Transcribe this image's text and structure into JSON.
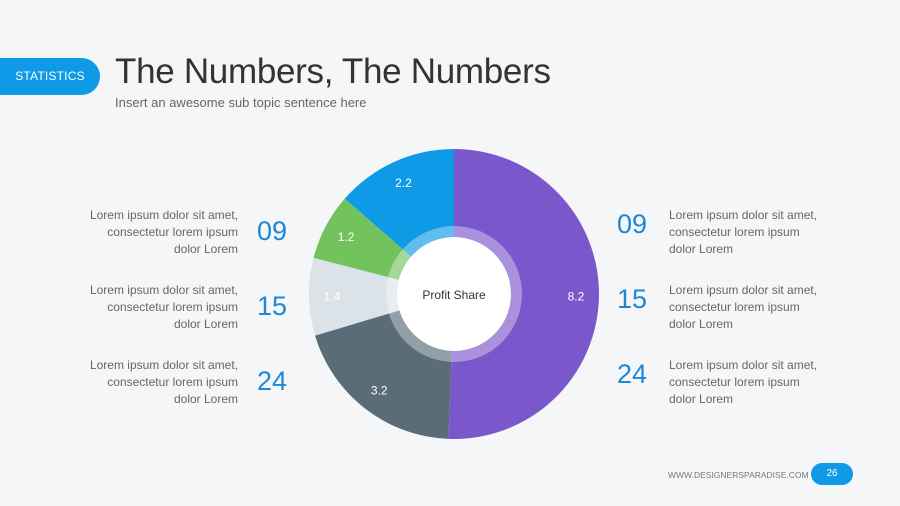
{
  "header": {
    "badge_label": "STATISTICS",
    "title": "The Numbers, The Numbers",
    "subtitle": "Insert an awesome sub topic sentence here"
  },
  "left_items": [
    {
      "number": "09",
      "text": [
        "Lorem ipsum dolor sit amet,",
        "consectetur lorem ipsum",
        "dolor  Lorem"
      ]
    },
    {
      "number": "15",
      "text": [
        "Lorem ipsum dolor sit amet,",
        "consectetur lorem ipsum",
        "dolor  Lorem"
      ]
    },
    {
      "number": "24",
      "text": [
        "Lorem ipsum dolor sit amet,",
        "consectetur lorem ipsum",
        "dolor  Lorem"
      ]
    }
  ],
  "right_items": [
    {
      "number": "09",
      "text": [
        "Lorem ipsum dolor sit amet,",
        "consectetur lorem ipsum",
        "dolor  Lorem"
      ]
    },
    {
      "number": "15",
      "text": [
        "Lorem ipsum dolor sit amet,",
        "consectetur lorem ipsum",
        "dolor  Lorem"
      ]
    },
    {
      "number": "24",
      "text": [
        "Lorem ipsum dolor sit amet,",
        "consectetur lorem ipsum",
        "dolor  Lorem"
      ]
    }
  ],
  "footer": {
    "url": "WWW.DESIGNERSPARADISE.COM",
    "page_number": "26"
  },
  "colors": {
    "accent": "#0e9ae6",
    "number": "#1e88d6"
  },
  "chart_data": {
    "type": "pie",
    "subtype": "donut",
    "title": "Profit Share",
    "categories": [
      "Purple",
      "Slate",
      "Light Gray",
      "Green",
      "Blue"
    ],
    "values": [
      8.2,
      3.2,
      1.4,
      1.2,
      2.2
    ],
    "labels": [
      "8.2",
      "3.2",
      "1.4",
      "1.2",
      "2.2"
    ],
    "colors": [
      "#7b57cc",
      "#5a6c78",
      "#dbe3e9",
      "#72c35e",
      "#0e9ae6"
    ],
    "start_angle": "12 o'clock, clockwise",
    "legend": "none"
  }
}
